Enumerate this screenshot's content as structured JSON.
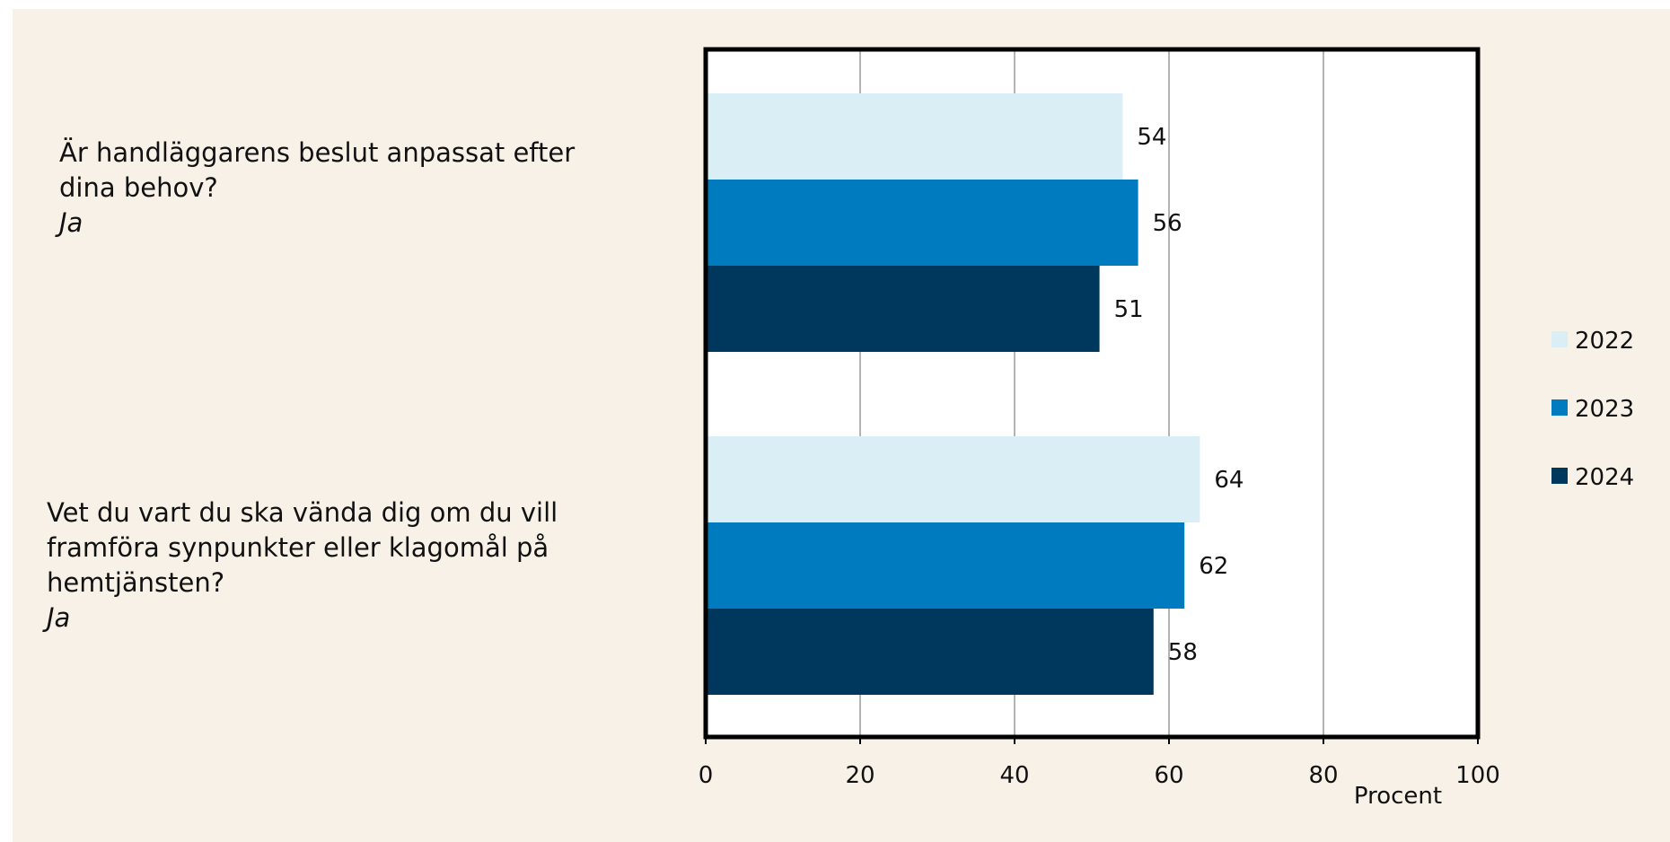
{
  "chart_data": {
    "type": "bar",
    "orientation": "horizontal",
    "categories": [
      {
        "question": "Är handläggarens beslut anpassat efter dina behov?",
        "answer": "Ja"
      },
      {
        "question": "Vet du vart du ska vända dig om du vill framföra synpunkter eller klagomål på hemtjänsten?",
        "answer": "Ja"
      }
    ],
    "series": [
      {
        "name": "2022",
        "color": "#daeef5",
        "values": [
          54,
          64
        ]
      },
      {
        "name": "2023",
        "color": "#017bc0",
        "values": [
          56,
          62
        ]
      },
      {
        "name": "2024",
        "color": "#00375c",
        "values": [
          51,
          58
        ]
      }
    ],
    "xlabel": "Procent",
    "xlim": [
      0,
      100
    ],
    "xticks": [
      "0",
      "20",
      "40",
      "60",
      "80",
      "100"
    ],
    "grid": true,
    "legend_position": "right"
  }
}
